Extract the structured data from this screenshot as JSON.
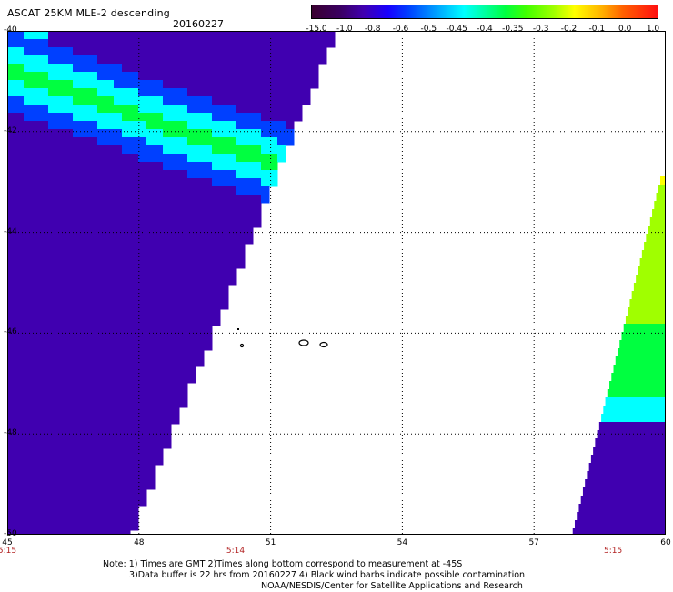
{
  "header": {
    "title": "ASCAT 25KM MLE-2 descending",
    "date": "20160227"
  },
  "colorbar": {
    "labels": [
      "-15.0",
      "-1.0",
      "-0.8",
      "-0.6",
      "-0.5",
      "-0.45",
      "-0.4",
      "-0.35",
      "-0.3",
      "-0.2",
      "-0.1",
      "0.0",
      "1.0"
    ],
    "colors": [
      "#3a0030",
      "#4000b0",
      "#0040ff",
      "#00ffff",
      "#00ff40",
      "#a0ff00",
      "#ffff00",
      "#ff6000",
      "#ff1010"
    ]
  },
  "map": {
    "lat_labels": [
      "-40",
      "-42",
      "-44",
      "-46",
      "-48",
      "-50"
    ],
    "lon_labels": [
      "45",
      "48",
      "51",
      "54",
      "57",
      "60"
    ],
    "lat_range": [
      -50,
      -40
    ],
    "lon_range": [
      45,
      60
    ],
    "time_labels": [
      "5:15",
      "5:14",
      "5:15"
    ],
    "time_lons": [
      45,
      50.2,
      58.8
    ]
  },
  "notes": {
    "line1": "Note: 1) Times are GMT 2)Times along bottom correspond to measurement at -45S",
    "line2": "3)Data buffer is 22 hrs from 20160227 4) Black wind barbs indicate possible contamination",
    "line3": "NOAA/NESDIS/Center for Satellite Applications and Research"
  }
}
